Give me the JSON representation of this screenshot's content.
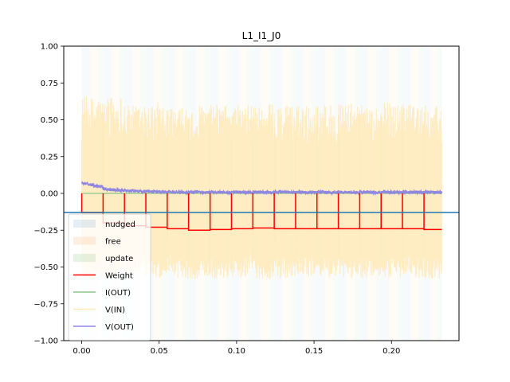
{
  "chart_data": {
    "type": "line",
    "title": "L1_I1_J0",
    "xlabel": "",
    "ylabel": "",
    "xlim": [
      -0.0116,
      0.2436
    ],
    "ylim": [
      -1.0,
      1.0
    ],
    "x_ticks": [
      0.0,
      0.05,
      0.1,
      0.15,
      0.2
    ],
    "x_tick_labels": [
      "0.00",
      "0.05",
      "0.10",
      "0.15",
      "0.20"
    ],
    "y_ticks": [
      -1.0,
      -0.75,
      -0.5,
      -0.25,
      0.0,
      0.25,
      0.5,
      0.75,
      1.0
    ],
    "y_tick_labels": [
      "−1.00",
      "−0.75",
      "−0.50",
      "−0.25",
      "0.00",
      "0.25",
      "0.50",
      "0.75",
      "1.00"
    ],
    "grid": false,
    "legend_position": "lower-left",
    "legend": [
      {
        "label": "nudged",
        "kind": "patch",
        "color": "#1f77b4"
      },
      {
        "label": "free",
        "kind": "patch",
        "color": "#ff7f0e"
      },
      {
        "label": "update",
        "kind": "patch",
        "color": "#2ca02c"
      },
      {
        "label": "Weight",
        "kind": "line",
        "color": "#ff0000"
      },
      {
        "label": "I(OUT)",
        "kind": "line",
        "color": "#8bc58b"
      },
      {
        "label": "V(IN)",
        "kind": "line",
        "color": "#ffe9b8"
      },
      {
        "label": "V(OUT)",
        "kind": "line",
        "color": "#8f86e0"
      }
    ],
    "horizontal_line": {
      "y": -0.13,
      "color": "#1f77b4"
    },
    "epoch_boundaries": [
      0.0,
      0.0138,
      0.0276,
      0.0414,
      0.0552,
      0.069,
      0.0829,
      0.0967,
      0.1105,
      0.1243,
      0.1381,
      0.1519,
      0.1657,
      0.1795,
      0.1933,
      0.2071,
      0.221,
      0.2325
    ],
    "phase_fractions": {
      "nudged": 0.37,
      "free": 0.37,
      "update": 0.26
    },
    "series": [
      {
        "name": "Weight",
        "color": "#ff0000",
        "segments": [
          {
            "start": 0.0,
            "end": 0.0138,
            "level": -0.13
          },
          {
            "start": 0.0138,
            "end": 0.0276,
            "level": -0.2
          },
          {
            "start": 0.0276,
            "end": 0.0414,
            "level": -0.22
          },
          {
            "start": 0.0414,
            "end": 0.0552,
            "level": -0.23
          },
          {
            "start": 0.0552,
            "end": 0.069,
            "level": -0.24
          },
          {
            "start": 0.069,
            "end": 0.0829,
            "level": -0.25
          },
          {
            "start": 0.0829,
            "end": 0.0967,
            "level": -0.245
          },
          {
            "start": 0.0967,
            "end": 0.1105,
            "level": -0.24
          },
          {
            "start": 0.1105,
            "end": 0.1243,
            "level": -0.235
          },
          {
            "start": 0.1243,
            "end": 0.1381,
            "level": -0.24
          },
          {
            "start": 0.1381,
            "end": 0.1519,
            "level": -0.24
          },
          {
            "start": 0.1519,
            "end": 0.1657,
            "level": -0.24
          },
          {
            "start": 0.1657,
            "end": 0.1795,
            "level": -0.24
          },
          {
            "start": 0.1795,
            "end": 0.1933,
            "level": -0.24
          },
          {
            "start": 0.1933,
            "end": 0.2071,
            "level": -0.24
          },
          {
            "start": 0.2071,
            "end": 0.221,
            "level": -0.24
          },
          {
            "start": 0.221,
            "end": 0.2325,
            "level": -0.245
          }
        ],
        "pulse_level": 0.0
      },
      {
        "name": "V(IN)",
        "color": "#ffe9b8",
        "range_min": -0.58,
        "range_max": 0.68,
        "epoch_peaks": [
          0.66,
          0.67,
          0.6,
          0.62,
          0.58,
          0.6,
          0.61,
          0.6,
          0.61,
          0.6,
          0.6,
          0.6,
          0.61,
          0.6,
          0.62,
          0.6,
          0.6
        ]
      },
      {
        "name": "V(OUT)",
        "color": "#8f86e0",
        "epoch_levels": [
          0.07,
          0.03,
          0.02,
          0.015,
          0.01,
          0.01,
          0.01,
          0.01,
          0.01,
          0.01,
          0.01,
          0.01,
          0.01,
          0.01,
          0.01,
          0.01,
          0.01
        ],
        "noise_amplitude": 0.02
      },
      {
        "name": "I(OUT)",
        "color": "#8bc58b",
        "level": 0.0
      }
    ]
  }
}
